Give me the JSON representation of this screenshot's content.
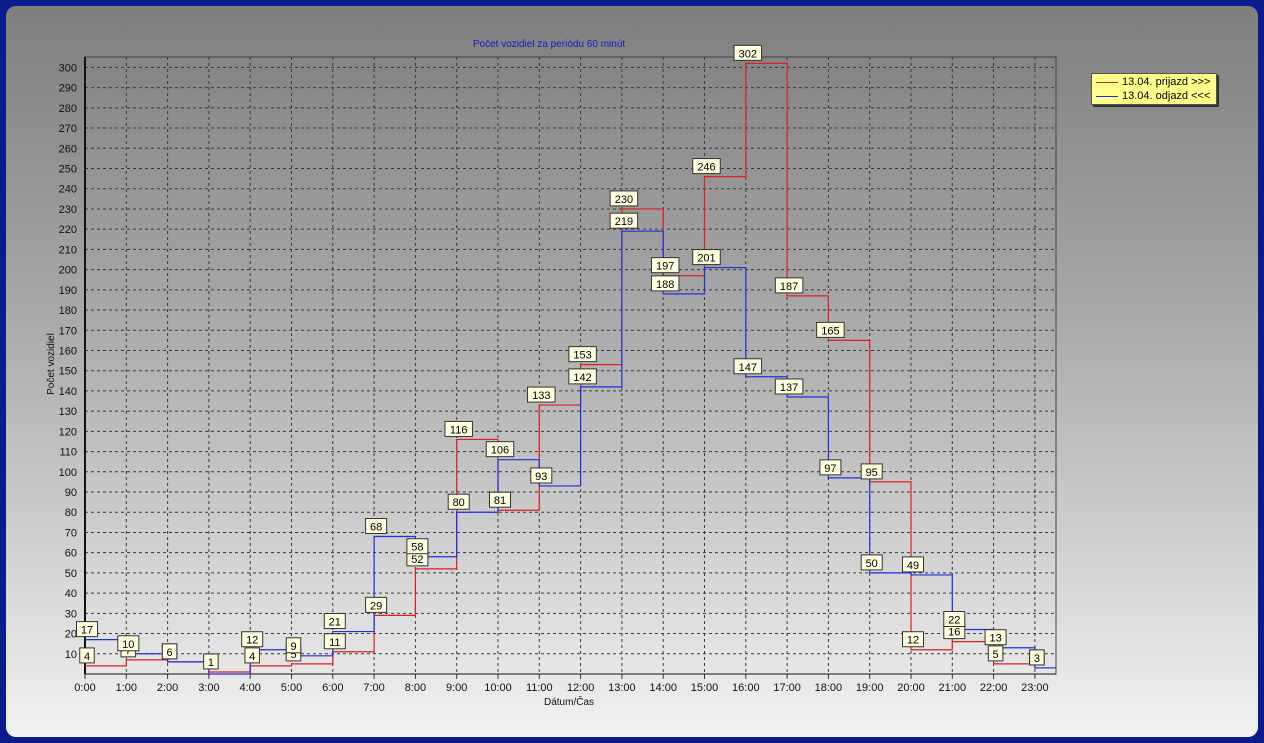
{
  "chart_data": {
    "type": "line",
    "step": true,
    "title": "Počet vozidiel za periódu 60 minút",
    "xlabel": "Dátum/Čas",
    "ylabel": "Počet vozidiel",
    "categories": [
      "0:00",
      "1:00",
      "2:00",
      "3:00",
      "4:00",
      "5:00",
      "6:00",
      "7:00",
      "8:00",
      "9:00",
      "10:00",
      "11:00",
      "12:00",
      "13:00",
      "14:00",
      "15:00",
      "16:00",
      "17:00",
      "18:00",
      "19:00",
      "20:00",
      "21:00",
      "22:00",
      "23:00"
    ],
    "ylim": [
      0,
      305
    ],
    "yticks": [
      10,
      20,
      30,
      40,
      50,
      60,
      70,
      80,
      90,
      100,
      110,
      120,
      130,
      140,
      150,
      160,
      170,
      180,
      190,
      200,
      210,
      220,
      230,
      240,
      250,
      260,
      270,
      280,
      290,
      300
    ],
    "grid": true,
    "legend_position": "top-right, outside plot",
    "series": [
      {
        "name": "13.04.  prijazd >>>",
        "color": "#e02020",
        "values": [
          4,
          7,
          6,
          1,
          4,
          5,
          11,
          29,
          52,
          116,
          81,
          133,
          153,
          230,
          197,
          246,
          302,
          187,
          165,
          95,
          12,
          16,
          5,
          3
        ]
      },
      {
        "name": "13.04.  odjazd <<<",
        "color": "#2030e0",
        "values": [
          17,
          10,
          6,
          0,
          12,
          9,
          21,
          68,
          58,
          80,
          106,
          93,
          142,
          219,
          188,
          201,
          147,
          137,
          97,
          50,
          49,
          22,
          13,
          3
        ]
      }
    ]
  }
}
